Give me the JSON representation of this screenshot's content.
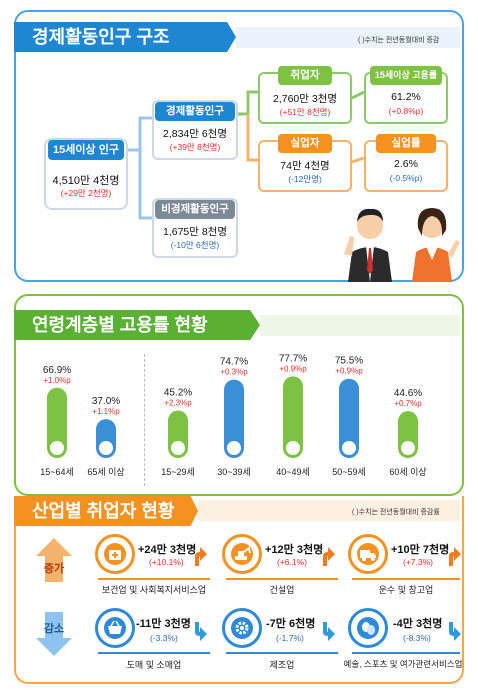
{
  "structure": {
    "title": "경제활동인구 구조",
    "note": "( )수치는 전년동월대비 증감",
    "pop15": {
      "label": "15세이상 인구",
      "value": "4,510만 4천명",
      "change": "(+29만 2천명)"
    },
    "active": {
      "label": "경제활동인구",
      "value": "2,834만 6천명",
      "change": "(+39만 8천명)"
    },
    "inactive": {
      "label": "비경제활동인구",
      "value": "1,675만 8천명",
      "change": "(-10만 6천명)"
    },
    "employed": {
      "label": "취업자",
      "value": "2,760만 3천명",
      "change": "(+51만 8천명)"
    },
    "emp_rate": {
      "label": "15세이상 고용률",
      "value": "61.2%",
      "change": "(+0.8%p)"
    },
    "unemployed": {
      "label": "실업자",
      "value": "74만 4천명",
      "change": "(-12만명)"
    },
    "unemp_rate": {
      "label": "실업률",
      "value": "2.6%",
      "change": "(-0.5%p)"
    }
  },
  "age": {
    "title": "연령계층별 고용률 현황",
    "chart_data": {
      "type": "bar",
      "categories": [
        "15~64세",
        "65세 이상",
        "15~29세",
        "30~39세",
        "40~49세",
        "50~59세",
        "60세 이상"
      ],
      "values": [
        66.9,
        37.0,
        45.2,
        74.7,
        77.7,
        75.5,
        44.6
      ],
      "value_labels": [
        "66.9%",
        "37.0%",
        "45.2%",
        "74.7%",
        "77.7%",
        "75.5%",
        "44.6%"
      ],
      "changes": [
        "+1.0%p",
        "+1.1%p",
        "+2.3%p",
        "+0.3%p",
        "+0.9%p",
        "+0.9%p",
        "+0.7%p"
      ],
      "colors": [
        "#7dc242",
        "#3a8fd6",
        "#7dc242",
        "#3a8fd6",
        "#7dc242",
        "#3a8fd6",
        "#7dc242"
      ]
    }
  },
  "industry": {
    "title": "산업별 취업자 현황",
    "note": "( )수치는 전년동월대비 증감률",
    "increase_label": "증가",
    "decrease_label": "감소",
    "increase": [
      {
        "value": "+24만 3천명",
        "change": "(+10.1%)",
        "name": "보건업 및 사회복지서비스업",
        "icon": "medical-kit-icon"
      },
      {
        "value": "+12만 3천명",
        "change": "(+6.1%)",
        "name": "건설업",
        "icon": "excavator-icon"
      },
      {
        "value": "+10만 7천명",
        "change": "(+7.3%)",
        "name": "운수 및 창고업",
        "icon": "truck-icon"
      }
    ],
    "decrease": [
      {
        "value": "-11만 3천명",
        "change": "(-3.3%)",
        "name": "도매 및 소매업",
        "icon": "shopping-basket-icon"
      },
      {
        "value": "-7만 6천명",
        "change": "(-1.7%)",
        "name": "제조업",
        "icon": "gear-icon"
      },
      {
        "value": "-4만 3천명",
        "change": "(-8.3%)",
        "name": "예술, 스포츠 및 여가관련서비스업",
        "icon": "masks-icon"
      }
    ],
    "colors": {
      "increase": "#f39221",
      "decrease": "#2e8ad8",
      "up_arrow": "#f07c1e",
      "down_arrow": "#2e9ae0"
    }
  }
}
